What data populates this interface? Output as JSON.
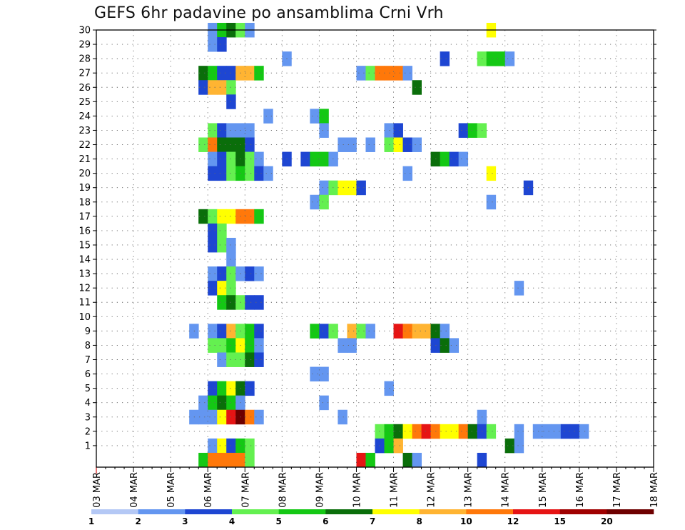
{
  "chart_data": {
    "type": "heatmap",
    "title": "GEFS 6hr padavine po ansamblima Crni Vrh",
    "xlabel": "",
    "ylabel": "",
    "x_ticks": [
      "03 MAR",
      "04 MAR",
      "05 MAR",
      "06 MAR",
      "07 MAR",
      "08 MAR",
      "09 MAR",
      "10 MAR",
      "11 MAR",
      "12 MAR",
      "13 MAR",
      "14 MAR",
      "15 MAR",
      "16 MAR",
      "17 MAR",
      "18 MAR"
    ],
    "y_ticks": [
      1,
      2,
      3,
      4,
      5,
      6,
      7,
      8,
      9,
      10,
      11,
      12,
      13,
      14,
      15,
      16,
      17,
      18,
      19,
      20,
      21,
      22,
      23,
      24,
      25,
      26,
      27,
      28,
      29,
      30
    ],
    "x_unit": "6-hour step from 03 MAR 00Z",
    "y_unit": "ensemble member",
    "grid": true,
    "legend": {
      "placement": "bottom",
      "bounds": [
        "1",
        "2",
        "3",
        "4",
        "5",
        "6",
        "7",
        "8",
        "10",
        "12",
        "15",
        "20"
      ],
      "colors": [
        "#b4c8f5",
        "#6496f0",
        "#1e46d2",
        "#64f050",
        "#14c814",
        "#0a6e0a",
        "#ffff00",
        "#ffb432",
        "#ff780a",
        "#e61414",
        "#a00000",
        "#6e0000"
      ]
    },
    "cells": [
      [
        12,
        30,
        1
      ],
      [
        13,
        30,
        4
      ],
      [
        14,
        30,
        5
      ],
      [
        15,
        30,
        3
      ],
      [
        16,
        30,
        1
      ],
      [
        42,
        30,
        6
      ],
      [
        12,
        29,
        1
      ],
      [
        13,
        29,
        2
      ],
      [
        20,
        28,
        1
      ],
      [
        37,
        28,
        2
      ],
      [
        41,
        28,
        3
      ],
      [
        42,
        28,
        4
      ],
      [
        43,
        28,
        4
      ],
      [
        44,
        28,
        1
      ],
      [
        11,
        27,
        5
      ],
      [
        12,
        27,
        4
      ],
      [
        13,
        27,
        2
      ],
      [
        14,
        27,
        2
      ],
      [
        15,
        27,
        7
      ],
      [
        16,
        27,
        7
      ],
      [
        17,
        27,
        4
      ],
      [
        28,
        27,
        1
      ],
      [
        29,
        27,
        3
      ],
      [
        30,
        27,
        8
      ],
      [
        31,
        27,
        8
      ],
      [
        32,
        27,
        8
      ],
      [
        33,
        27,
        1
      ],
      [
        11,
        26,
        2
      ],
      [
        12,
        26,
        7
      ],
      [
        13,
        26,
        7
      ],
      [
        14,
        26,
        3
      ],
      [
        34,
        26,
        5
      ],
      [
        14,
        25,
        2
      ],
      [
        18,
        24,
        1
      ],
      [
        23,
        24,
        1
      ],
      [
        24,
        24,
        4
      ],
      [
        12,
        23,
        3
      ],
      [
        13,
        23,
        2
      ],
      [
        14,
        23,
        1
      ],
      [
        15,
        23,
        1
      ],
      [
        16,
        23,
        1
      ],
      [
        24,
        23,
        1
      ],
      [
        31,
        23,
        1
      ],
      [
        32,
        23,
        2
      ],
      [
        39,
        23,
        2
      ],
      [
        40,
        23,
        4
      ],
      [
        41,
        23,
        3
      ],
      [
        11,
        22,
        3
      ],
      [
        12,
        22,
        8
      ],
      [
        13,
        22,
        5
      ],
      [
        14,
        22,
        5
      ],
      [
        15,
        22,
        5
      ],
      [
        16,
        22,
        2
      ],
      [
        26,
        22,
        1
      ],
      [
        27,
        22,
        1
      ],
      [
        29,
        22,
        1
      ],
      [
        31,
        22,
        3
      ],
      [
        32,
        22,
        6
      ],
      [
        33,
        22,
        2
      ],
      [
        34,
        22,
        1
      ],
      [
        12,
        21,
        1
      ],
      [
        13,
        21,
        2
      ],
      [
        14,
        21,
        3
      ],
      [
        15,
        21,
        5
      ],
      [
        16,
        21,
        3
      ],
      [
        17,
        21,
        1
      ],
      [
        20,
        21,
        2
      ],
      [
        22,
        21,
        2
      ],
      [
        23,
        21,
        4
      ],
      [
        24,
        21,
        4
      ],
      [
        25,
        21,
        1
      ],
      [
        36,
        21,
        5
      ],
      [
        37,
        21,
        4
      ],
      [
        38,
        21,
        2
      ],
      [
        39,
        21,
        1
      ],
      [
        12,
        20,
        2
      ],
      [
        13,
        20,
        2
      ],
      [
        14,
        20,
        3
      ],
      [
        15,
        20,
        4
      ],
      [
        16,
        20,
        3
      ],
      [
        17,
        20,
        2
      ],
      [
        18,
        20,
        1
      ],
      [
        33,
        20,
        1
      ],
      [
        42,
        20,
        6
      ],
      [
        24,
        19,
        1
      ],
      [
        25,
        19,
        3
      ],
      [
        26,
        19,
        6
      ],
      [
        27,
        19,
        6
      ],
      [
        28,
        19,
        2
      ],
      [
        46,
        19,
        2
      ],
      [
        23,
        18,
        1
      ],
      [
        24,
        18,
        3
      ],
      [
        42,
        18,
        1
      ],
      [
        11,
        17,
        5
      ],
      [
        12,
        17,
        3
      ],
      [
        13,
        17,
        6
      ],
      [
        14,
        17,
        6
      ],
      [
        15,
        17,
        8
      ],
      [
        16,
        17,
        8
      ],
      [
        17,
        17,
        4
      ],
      [
        12,
        16,
        2
      ],
      [
        13,
        16,
        3
      ],
      [
        12,
        15,
        2
      ],
      [
        13,
        15,
        3
      ],
      [
        14,
        15,
        1
      ],
      [
        14,
        14,
        1
      ],
      [
        12,
        13,
        1
      ],
      [
        13,
        13,
        2
      ],
      [
        14,
        13,
        3
      ],
      [
        15,
        13,
        1
      ],
      [
        16,
        13,
        2
      ],
      [
        17,
        13,
        1
      ],
      [
        12,
        12,
        2
      ],
      [
        13,
        12,
        6
      ],
      [
        14,
        12,
        3
      ],
      [
        45,
        12,
        1
      ],
      [
        13,
        11,
        4
      ],
      [
        14,
        11,
        5
      ],
      [
        15,
        11,
        3
      ],
      [
        16,
        11,
        2
      ],
      [
        17,
        11,
        2
      ],
      [
        10,
        9,
        1
      ],
      [
        12,
        9,
        1
      ],
      [
        13,
        9,
        2
      ],
      [
        14,
        9,
        7
      ],
      [
        15,
        9,
        3
      ],
      [
        16,
        9,
        4
      ],
      [
        17,
        9,
        2
      ],
      [
        23,
        9,
        4
      ],
      [
        24,
        9,
        2
      ],
      [
        25,
        9,
        3
      ],
      [
        27,
        9,
        7
      ],
      [
        28,
        9,
        3
      ],
      [
        29,
        9,
        1
      ],
      [
        32,
        9,
        9
      ],
      [
        33,
        9,
        8
      ],
      [
        34,
        9,
        7
      ],
      [
        35,
        9,
        7
      ],
      [
        36,
        9,
        5
      ],
      [
        37,
        9,
        1
      ],
      [
        12,
        8,
        3
      ],
      [
        13,
        8,
        3
      ],
      [
        14,
        8,
        4
      ],
      [
        15,
        8,
        6
      ],
      [
        16,
        8,
        4
      ],
      [
        17,
        8,
        1
      ],
      [
        26,
        8,
        1
      ],
      [
        27,
        8,
        1
      ],
      [
        36,
        8,
        2
      ],
      [
        37,
        8,
        5
      ],
      [
        38,
        8,
        1
      ],
      [
        13,
        7,
        1
      ],
      [
        14,
        7,
        3
      ],
      [
        15,
        7,
        3
      ],
      [
        16,
        7,
        5
      ],
      [
        17,
        7,
        2
      ],
      [
        23,
        6,
        1
      ],
      [
        24,
        6,
        1
      ],
      [
        12,
        5,
        2
      ],
      [
        13,
        5,
        4
      ],
      [
        14,
        5,
        6
      ],
      [
        15,
        5,
        5
      ],
      [
        16,
        5,
        2
      ],
      [
        31,
        5,
        1
      ],
      [
        11,
        4,
        1
      ],
      [
        12,
        4,
        4
      ],
      [
        13,
        4,
        5
      ],
      [
        14,
        4,
        4
      ],
      [
        15,
        4,
        1
      ],
      [
        24,
        4,
        1
      ],
      [
        10,
        3,
        1
      ],
      [
        11,
        3,
        1
      ],
      [
        12,
        3,
        1
      ],
      [
        13,
        3,
        6
      ],
      [
        14,
        3,
        9
      ],
      [
        15,
        3,
        11
      ],
      [
        16,
        3,
        8
      ],
      [
        17,
        3,
        1
      ],
      [
        26,
        3,
        1
      ],
      [
        41,
        3,
        1
      ],
      [
        30,
        2,
        3
      ],
      [
        31,
        2,
        4
      ],
      [
        32,
        2,
        5
      ],
      [
        33,
        2,
        6
      ],
      [
        34,
        2,
        8
      ],
      [
        35,
        2,
        9
      ],
      [
        36,
        2,
        8
      ],
      [
        37,
        2,
        6
      ],
      [
        38,
        2,
        6
      ],
      [
        39,
        2,
        8
      ],
      [
        40,
        2,
        5
      ],
      [
        41,
        2,
        2
      ],
      [
        42,
        2,
        3
      ],
      [
        45,
        2,
        1
      ],
      [
        47,
        2,
        1
      ],
      [
        48,
        2,
        1
      ],
      [
        49,
        2,
        1
      ],
      [
        50,
        2,
        2
      ],
      [
        51,
        2,
        2
      ],
      [
        52,
        2,
        1
      ],
      [
        12,
        1,
        1
      ],
      [
        13,
        1,
        6
      ],
      [
        14,
        1,
        2
      ],
      [
        15,
        1,
        4
      ],
      [
        16,
        1,
        3
      ],
      [
        30,
        1,
        2
      ],
      [
        31,
        1,
        4
      ],
      [
        32,
        1,
        7
      ],
      [
        44,
        1,
        5
      ],
      [
        45,
        1,
        1
      ],
      [
        11,
        0,
        4
      ],
      [
        12,
        0,
        8
      ],
      [
        13,
        0,
        8
      ],
      [
        14,
        0,
        8
      ],
      [
        15,
        0,
        8
      ],
      [
        16,
        0,
        3
      ],
      [
        28,
        0,
        9
      ],
      [
        29,
        0,
        4
      ],
      [
        33,
        0,
        5
      ],
      [
        34,
        0,
        1
      ],
      [
        41,
        0,
        2
      ]
    ]
  }
}
